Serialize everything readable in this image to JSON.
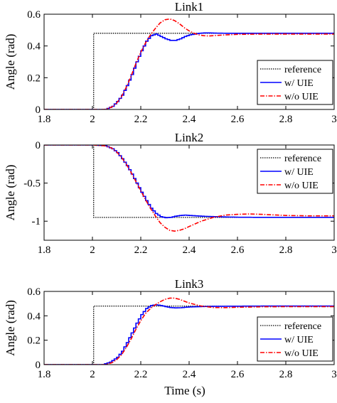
{
  "chart_data": [
    {
      "type": "line",
      "title": "Link1",
      "xlabel": "",
      "ylabel": "Angle (rad)",
      "xlim": [
        1.8,
        3.0
      ],
      "ylim": [
        0,
        0.6
      ],
      "xticks": [
        1.8,
        2,
        2.2,
        2.4,
        2.6,
        2.8,
        3
      ],
      "xtick_labels": [
        "1.8",
        "2",
        "2.2",
        "2.4",
        "2.6",
        "2.8",
        "3"
      ],
      "yticks": [
        0,
        0.2,
        0.4,
        0.6
      ],
      "ytick_labels": [
        "0",
        "0.2",
        "0.4",
        "0.6"
      ],
      "legend_position": "lower-right",
      "series": [
        {
          "name": "reference",
          "color": "#000000",
          "style": "dotted",
          "step": true,
          "x": [
            1.8,
            2.005,
            2.005,
            3.0
          ],
          "y": [
            0,
            0,
            0.48,
            0.48
          ]
        },
        {
          "name": "w/ UIE",
          "color": "#0000ff",
          "style": "solid",
          "staircase": true,
          "x": [
            1.8,
            2.0,
            2.05,
            2.08,
            2.1,
            2.12,
            2.14,
            2.16,
            2.18,
            2.2,
            2.22,
            2.24,
            2.26,
            2.28,
            2.3,
            2.32,
            2.34,
            2.36,
            2.38,
            2.4,
            2.42,
            2.44,
            2.46,
            2.48,
            2.5,
            2.55,
            2.6,
            2.7,
            2.8,
            2.9,
            3.0
          ],
          "y": [
            0,
            0,
            0.0,
            0.02,
            0.05,
            0.09,
            0.15,
            0.22,
            0.3,
            0.37,
            0.43,
            0.465,
            0.475,
            0.46,
            0.445,
            0.435,
            0.435,
            0.445,
            0.46,
            0.47,
            0.475,
            0.48,
            0.482,
            0.482,
            0.481,
            0.48,
            0.48,
            0.48,
            0.48,
            0.48,
            0.48
          ]
        },
        {
          "name": "w/o UIE",
          "color": "#ff0000",
          "style": "dashdot",
          "staircase": false,
          "x": [
            1.8,
            2.0,
            2.05,
            2.08,
            2.1,
            2.12,
            2.14,
            2.16,
            2.18,
            2.2,
            2.22,
            2.24,
            2.26,
            2.28,
            2.3,
            2.32,
            2.34,
            2.36,
            2.38,
            2.4,
            2.42,
            2.44,
            2.46,
            2.48,
            2.5,
            2.55,
            2.6,
            2.7,
            2.8,
            2.9,
            3.0
          ],
          "y": [
            0,
            0,
            0.0,
            0.015,
            0.04,
            0.08,
            0.14,
            0.21,
            0.29,
            0.36,
            0.42,
            0.47,
            0.51,
            0.545,
            0.565,
            0.57,
            0.56,
            0.54,
            0.515,
            0.495,
            0.48,
            0.47,
            0.465,
            0.463,
            0.465,
            0.47,
            0.473,
            0.475,
            0.475,
            0.475,
            0.475
          ]
        }
      ]
    },
    {
      "type": "line",
      "title": "Link2",
      "xlabel": "",
      "ylabel": "Angle (rad)",
      "xlim": [
        1.8,
        3.0
      ],
      "ylim": [
        -1.25,
        0
      ],
      "xticks": [
        1.8,
        2,
        2.2,
        2.4,
        2.6,
        2.8,
        3
      ],
      "xtick_labels": [
        "1.8",
        "2",
        "2.2",
        "2.4",
        "2.6",
        "2.8",
        "3"
      ],
      "yticks": [
        -1,
        -0.5,
        0
      ],
      "ytick_labels": [
        "-1",
        "-0.5",
        "0"
      ],
      "legend_position": "top-right",
      "series": [
        {
          "name": "reference",
          "color": "#000000",
          "style": "dotted",
          "step": true,
          "x": [
            1.8,
            2.005,
            2.005,
            3.0
          ],
          "y": [
            0,
            0,
            -0.95,
            -0.95
          ]
        },
        {
          "name": "w/ UIE",
          "color": "#0000ff",
          "style": "solid",
          "staircase": true,
          "x": [
            1.8,
            2.0,
            2.05,
            2.08,
            2.1,
            2.12,
            2.14,
            2.16,
            2.18,
            2.2,
            2.22,
            2.24,
            2.26,
            2.28,
            2.3,
            2.32,
            2.34,
            2.36,
            2.38,
            2.4,
            2.45,
            2.5,
            2.55,
            2.6,
            2.7,
            2.8,
            2.9,
            3.0
          ],
          "y": [
            0,
            0,
            -0.01,
            -0.05,
            -0.1,
            -0.18,
            -0.27,
            -0.38,
            -0.5,
            -0.62,
            -0.73,
            -0.83,
            -0.9,
            -0.94,
            -0.955,
            -0.95,
            -0.935,
            -0.925,
            -0.92,
            -0.925,
            -0.935,
            -0.94,
            -0.945,
            -0.948,
            -0.95,
            -0.95,
            -0.95,
            -0.95
          ]
        },
        {
          "name": "w/o UIE",
          "color": "#ff0000",
          "style": "dashdot",
          "staircase": false,
          "x": [
            1.8,
            2.0,
            2.05,
            2.08,
            2.1,
            2.12,
            2.14,
            2.16,
            2.18,
            2.2,
            2.22,
            2.24,
            2.26,
            2.28,
            2.3,
            2.32,
            2.34,
            2.36,
            2.38,
            2.4,
            2.45,
            2.5,
            2.55,
            2.6,
            2.65,
            2.7,
            2.8,
            2.9,
            3.0
          ],
          "y": [
            0,
            0,
            -0.01,
            -0.04,
            -0.09,
            -0.16,
            -0.25,
            -0.36,
            -0.48,
            -0.6,
            -0.72,
            -0.83,
            -0.93,
            -1.02,
            -1.08,
            -1.12,
            -1.13,
            -1.12,
            -1.1,
            -1.07,
            -1.0,
            -0.95,
            -0.92,
            -0.91,
            -0.905,
            -0.91,
            -0.925,
            -0.93,
            -0.93
          ]
        }
      ]
    },
    {
      "type": "line",
      "title": "Link3",
      "xlabel": "Time (s)",
      "ylabel": "Angle (rad)",
      "xlim": [
        1.8,
        3.0
      ],
      "ylim": [
        0,
        0.6
      ],
      "xticks": [
        1.8,
        2,
        2.2,
        2.4,
        2.6,
        2.8,
        3
      ],
      "xtick_labels": [
        "1.8",
        "2",
        "2.2",
        "2.4",
        "2.6",
        "2.8",
        "3"
      ],
      "yticks": [
        0,
        0.2,
        0.4,
        0.6
      ],
      "ytick_labels": [
        "0",
        "0.2",
        "0.4",
        "0.6"
      ],
      "legend_position": "lower-right",
      "series": [
        {
          "name": "reference",
          "color": "#000000",
          "style": "dotted",
          "step": true,
          "x": [
            1.8,
            2.005,
            2.005,
            3.0
          ],
          "y": [
            0,
            0,
            0.48,
            0.48
          ]
        },
        {
          "name": "w/ UIE",
          "color": "#0000ff",
          "style": "solid",
          "staircase": true,
          "x": [
            1.8,
            2.0,
            2.04,
            2.07,
            2.1,
            2.12,
            2.14,
            2.16,
            2.18,
            2.2,
            2.22,
            2.24,
            2.26,
            2.28,
            2.3,
            2.32,
            2.34,
            2.36,
            2.38,
            2.4,
            2.45,
            2.5,
            2.6,
            2.7,
            2.8,
            2.9,
            3.0
          ],
          "y": [
            0,
            0,
            0.0,
            0.02,
            0.06,
            0.11,
            0.18,
            0.26,
            0.34,
            0.41,
            0.46,
            0.485,
            0.49,
            0.485,
            0.475,
            0.468,
            0.465,
            0.466,
            0.47,
            0.473,
            0.476,
            0.478,
            0.479,
            0.48,
            0.48,
            0.48,
            0.48
          ]
        },
        {
          "name": "w/o UIE",
          "color": "#ff0000",
          "style": "dashdot",
          "staircase": false,
          "x": [
            1.8,
            2.0,
            2.05,
            2.08,
            2.1,
            2.12,
            2.14,
            2.16,
            2.18,
            2.2,
            2.22,
            2.24,
            2.26,
            2.28,
            2.3,
            2.32,
            2.34,
            2.36,
            2.38,
            2.4,
            2.45,
            2.5,
            2.55,
            2.6,
            2.7,
            2.8,
            2.9,
            3.0
          ],
          "y": [
            0,
            0,
            0.0,
            0.015,
            0.04,
            0.08,
            0.14,
            0.21,
            0.29,
            0.36,
            0.42,
            0.46,
            0.49,
            0.515,
            0.535,
            0.545,
            0.545,
            0.535,
            0.52,
            0.505,
            0.48,
            0.468,
            0.467,
            0.47,
            0.474,
            0.475,
            0.475,
            0.475
          ]
        }
      ]
    }
  ]
}
